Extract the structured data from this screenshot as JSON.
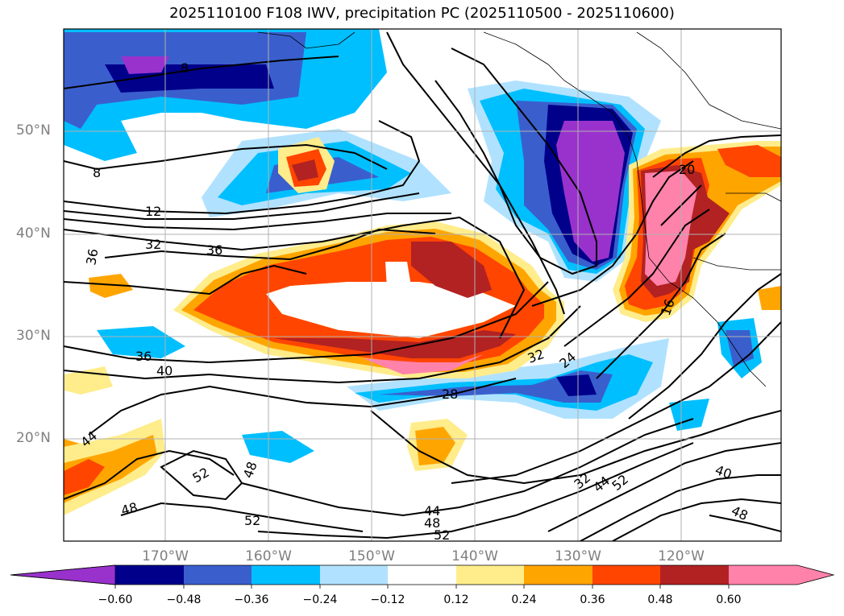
{
  "title": "2025110100 F108 IWV, precipitation PC (2025110500 - 2025110600)",
  "map": {
    "lon_range": [
      -180,
      -110
    ],
    "lat_range": [
      10,
      60
    ],
    "lat_ticks": [
      {
        "label": "50°N",
        "value": 50
      },
      {
        "label": "40°N",
        "value": 40
      },
      {
        "label": "30°N",
        "value": 30
      },
      {
        "label": "20°N",
        "value": 20
      }
    ],
    "lon_ticks": [
      {
        "label": "170°W",
        "value": -170
      },
      {
        "label": "160°W",
        "value": -160
      },
      {
        "label": "150°W",
        "value": -150
      },
      {
        "label": "140°W",
        "value": -140
      },
      {
        "label": "130°W",
        "value": -130
      },
      {
        "label": "120°W",
        "value": -120
      }
    ],
    "contour_labels": [
      "8",
      "8",
      "12",
      "32",
      "36",
      "36",
      "36",
      "40",
      "44",
      "52",
      "48",
      "48",
      "52",
      "44",
      "48",
      "52",
      "28",
      "32",
      "24",
      "16",
      "20",
      "32",
      "44",
      "52",
      "40",
      "48"
    ]
  },
  "colorbar": {
    "ticks": [
      "−0.60",
      "−0.48",
      "−0.36",
      "−0.24",
      "−0.12",
      "0.12",
      "0.24",
      "0.36",
      "0.48",
      "0.60"
    ],
    "colors": [
      "#9932cc",
      "#00008b",
      "#3a5fcd",
      "#00bfff",
      "#b0e2ff",
      "#ffffff",
      "#ffec8b",
      "#ffa500",
      "#ff4500",
      "#b22222",
      "#ff82ab"
    ]
  }
}
